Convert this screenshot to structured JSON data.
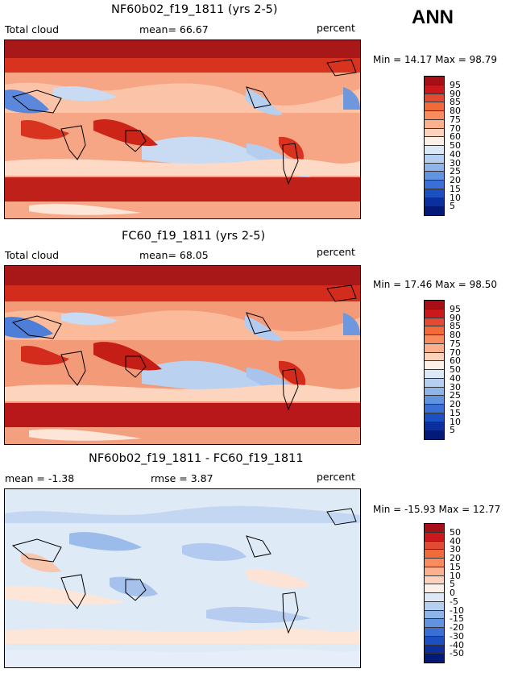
{
  "header": {
    "season": "ANN"
  },
  "chart_data": [
    {
      "type": "heatmap",
      "title": "NF60b02_f19_1811 (yrs 2-5)",
      "variable": "Total cloud",
      "mean_text": "mean=   66.67",
      "units": "percent",
      "min_max_text": "Min =  14.17 Max =  98.79",
      "min": 14.17,
      "max": 98.79,
      "mean": 66.67,
      "colorbar_levels": [
        "95",
        "90",
        "85",
        "80",
        "75",
        "70",
        "60",
        "50",
        "40",
        "30",
        "25",
        "20",
        "15",
        "10",
        "5"
      ],
      "colorbar_colors": [
        "#a50f15",
        "#cb181d",
        "#e34a33",
        "#f16a3a",
        "#f88c5e",
        "#fbb08e",
        "#fdd2bd",
        "#fdf0e8",
        "#dce8f5",
        "#b4cff0",
        "#8db5ea",
        "#6193e1",
        "#3a6fd6",
        "#1c4fc0",
        "#0b2f9c",
        "#031a78"
      ]
    },
    {
      "type": "heatmap",
      "title": "FC60_f19_1811 (yrs 2-5)",
      "variable": "Total cloud",
      "mean_text": "mean=   68.05",
      "units": "percent",
      "min_max_text": "Min =  17.46 Max =  98.50",
      "min": 17.46,
      "max": 98.5,
      "mean": 68.05,
      "colorbar_levels": [
        "95",
        "90",
        "85",
        "80",
        "75",
        "70",
        "60",
        "50",
        "40",
        "30",
        "25",
        "20",
        "15",
        "10",
        "5"
      ],
      "colorbar_colors": [
        "#a50f15",
        "#cb181d",
        "#e34a33",
        "#f16a3a",
        "#f88c5e",
        "#fbb08e",
        "#fdd2bd",
        "#fdf0e8",
        "#dce8f5",
        "#b4cff0",
        "#8db5ea",
        "#6193e1",
        "#3a6fd6",
        "#1c4fc0",
        "#0b2f9c",
        "#031a78"
      ]
    },
    {
      "type": "heatmap",
      "title": "NF60b02_f19_1811 - FC60_f19_1811",
      "mean_text": "mean =   -1.38",
      "rmse_text": "rmse =    3.87",
      "units": "percent",
      "min_max_text": "Min = -15.93 Max =  12.77",
      "min": -15.93,
      "max": 12.77,
      "mean": -1.38,
      "rmse": 3.87,
      "colorbar_levels": [
        "50",
        "40",
        "30",
        "20",
        "15",
        "10",
        "5",
        "0",
        "-5",
        "-10",
        "-15",
        "-20",
        "-30",
        "-40",
        "-50"
      ],
      "colorbar_colors": [
        "#a50f15",
        "#cb181d",
        "#e34a33",
        "#f16a3a",
        "#f88c5e",
        "#fbb08e",
        "#fdd2bd",
        "#fdf0e8",
        "#dce8f5",
        "#b4cff0",
        "#8db5ea",
        "#6193e1",
        "#3a6fd6",
        "#1c4fc0",
        "#0b2f9c",
        "#031a78"
      ]
    }
  ]
}
